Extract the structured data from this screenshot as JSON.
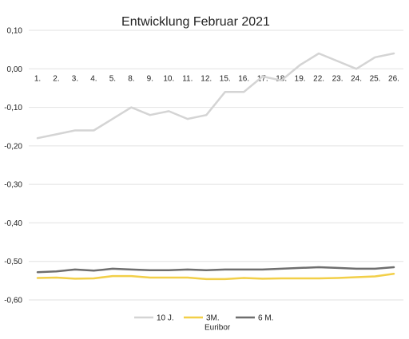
{
  "chart_data": {
    "type": "line",
    "title": "Entwicklung Februar 2021",
    "categories": [
      "1.",
      "2.",
      "3.",
      "4.",
      "5.",
      "8.",
      "9.",
      "10.",
      "11.",
      "12.",
      "15.",
      "16.",
      "17.",
      "18.",
      "19.",
      "22.",
      "23.",
      "24.",
      "25.",
      "26."
    ],
    "ylim": [
      -0.6,
      0.1
    ],
    "yticks": [
      "0,10",
      "0,00",
      "-0,10",
      "-0,20",
      "-0,30",
      "-0,40",
      "-0,50",
      "-0,60"
    ],
    "grid": true,
    "legend_position": "bottom",
    "series": [
      {
        "name": "10 J.",
        "color": "#d4d4d4",
        "values": [
          -0.18,
          -0.17,
          -0.16,
          -0.16,
          -0.13,
          -0.1,
          -0.12,
          -0.11,
          -0.13,
          -0.12,
          -0.06,
          -0.06,
          -0.02,
          -0.03,
          0.01,
          0.04,
          0.02,
          0.0,
          0.03,
          0.04
        ]
      },
      {
        "name": "3M. Euribor",
        "name_lines": [
          "3M.",
          "Euribor"
        ],
        "color": "#f2cf48",
        "values": [
          -0.543,
          -0.542,
          -0.545,
          -0.544,
          -0.538,
          -0.538,
          -0.542,
          -0.542,
          -0.542,
          -0.546,
          -0.546,
          -0.543,
          -0.545,
          -0.544,
          -0.544,
          -0.544,
          -0.543,
          -0.541,
          -0.539,
          -0.532
        ]
      },
      {
        "name": "6 M.",
        "color": "#6e6e6e",
        "values": [
          -0.528,
          -0.526,
          -0.521,
          -0.524,
          -0.519,
          -0.521,
          -0.523,
          -0.523,
          -0.521,
          -0.523,
          -0.521,
          -0.521,
          -0.521,
          -0.519,
          -0.517,
          -0.515,
          -0.517,
          -0.519,
          -0.519,
          -0.515
        ]
      }
    ]
  }
}
